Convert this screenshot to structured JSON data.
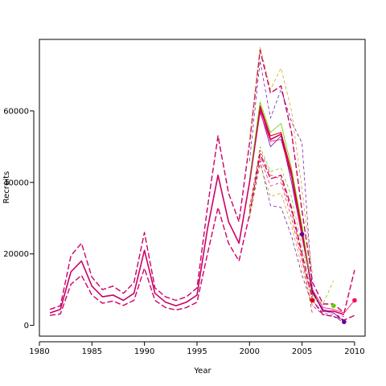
{
  "chart_data": {
    "type": "line",
    "title": "",
    "xlabel": "Year",
    "ylabel": "Recruits",
    "xlim": [
      1980,
      2011
    ],
    "ylim": [
      -3000,
      80000
    ],
    "x_ticks": [
      1980,
      1985,
      1990,
      1995,
      2000,
      2005,
      2010
    ],
    "y_ticks": [
      0,
      20000,
      40000,
      60000
    ],
    "grid": false,
    "legend": "none",
    "series": [
      {
        "color": "#cc0066",
        "style": "solid",
        "width": 1.6,
        "x": [
          1981,
          1982,
          1983,
          1984,
          1985,
          1986,
          1987,
          1988,
          1989,
          1990,
          1991,
          1992,
          1993,
          1994,
          1995,
          1996,
          1997,
          1998,
          1999,
          2000,
          2001,
          2002,
          2003,
          2004,
          2005,
          2006,
          2007,
          2008,
          2009
        ],
        "values": [
          3500,
          4500,
          15000,
          18000,
          11000,
          8000,
          8500,
          7000,
          9000,
          21000,
          9000,
          6500,
          5500,
          6500,
          8500,
          27000,
          42000,
          29000,
          23000,
          40000,
          61000,
          52000,
          53500,
          42000,
          26000,
          9500,
          4000,
          4000,
          3000
        ]
      },
      {
        "color": "#cc0066",
        "style": "dash",
        "width": 1.4,
        "x": [
          1981,
          1982,
          1983,
          1984,
          1985,
          1986,
          1987,
          1988,
          1989,
          1990,
          1991,
          1992,
          1993,
          1994,
          1995,
          1996,
          1997,
          1998,
          1999,
          2000,
          2001,
          2002,
          2003,
          2004,
          2005,
          2006,
          2007,
          2008,
          2009,
          2010
        ],
        "values": [
          4500,
          5500,
          19500,
          23000,
          13500,
          10000,
          11000,
          9000,
          12000,
          26000,
          10500,
          8000,
          7000,
          8000,
          10500,
          33000,
          53000,
          37000,
          29000,
          51000,
          77000,
          65000,
          67000,
          54000,
          32000,
          12000,
          6000,
          6000,
          3500,
          15500
        ]
      },
      {
        "color": "#cc0066",
        "style": "dash",
        "width": 1.4,
        "x": [
          1981,
          1982,
          1983,
          1984,
          1985,
          1986,
          1987,
          1988,
          1989,
          1990,
          1991,
          1992,
          1993,
          1994,
          1995,
          1996,
          1997,
          1998,
          1999,
          2000,
          2001,
          2002,
          2003,
          2004,
          2005,
          2006,
          2007,
          2008,
          2009,
          2010
        ],
        "values": [
          2800,
          3200,
          11500,
          14000,
          8500,
          6200,
          6800,
          5600,
          7000,
          16000,
          7000,
          5000,
          4300,
          5000,
          6500,
          20000,
          33000,
          23000,
          18000,
          31000,
          48000,
          41000,
          42000,
          33000,
          20000,
          7000,
          3000,
          2500,
          1500,
          2800
        ]
      },
      {
        "color": "#dd0000",
        "style": "solid",
        "width": 1.0,
        "x": [
          2000,
          2001,
          2002,
          2003,
          2004,
          2005,
          2006
        ],
        "values": [
          40000,
          61500,
          53000,
          54000,
          43000,
          27000,
          8000
        ]
      },
      {
        "color": "#66cc00",
        "style": "solid",
        "width": 0.8,
        "x": [
          2000,
          2001,
          2002,
          2003,
          2004,
          2005,
          2006
        ],
        "values": [
          41000,
          62500,
          54000,
          56500,
          44000,
          28000,
          9000
        ]
      },
      {
        "color": "#660099",
        "style": "solid",
        "width": 0.8,
        "x": [
          2000,
          2001,
          2002,
          2003,
          2004,
          2005,
          2006,
          2007,
          2008,
          2009
        ],
        "values": [
          40000,
          60000,
          50000,
          53000,
          40000,
          25000,
          9000,
          4500,
          3500,
          1000
        ]
      },
      {
        "color": "#ff0066",
        "style": "solid",
        "width": 0.8,
        "x": [
          2000,
          2001,
          2002,
          2003,
          2004,
          2005,
          2006,
          2007,
          2008,
          2009,
          2010
        ],
        "values": [
          39500,
          59500,
          51500,
          52000,
          41500,
          24500,
          10000,
          5000,
          4500,
          3500,
          7000
        ]
      },
      {
        "color": "#cc9900",
        "style": "dash",
        "width": 0.7,
        "x": [
          2000,
          2001,
          2002,
          2003,
          2004,
          2005,
          2006
        ],
        "values": [
          52000,
          78000,
          66000,
          72000,
          60000,
          38000,
          14000
        ]
      },
      {
        "color": "#660099",
        "style": "dash",
        "width": 0.7,
        "x": [
          2000,
          2001,
          2002,
          2003,
          2004,
          2005,
          2006,
          2007,
          2008,
          2009
        ],
        "values": [
          46000,
          74000,
          58000,
          66000,
          57000,
          51000,
          9000,
          4000,
          3500,
          1500
        ]
      },
      {
        "color": "#66cc00",
        "style": "dash",
        "width": 0.7,
        "x": [
          2000,
          2001,
          2002,
          2003,
          2004,
          2005,
          2006,
          2007,
          2008
        ],
        "values": [
          31000,
          50000,
          43000,
          44000,
          36000,
          22000,
          8000,
          6000,
          12500
        ]
      },
      {
        "color": "#660099",
        "style": "dash",
        "width": 0.7,
        "x": [
          2000,
          2001,
          2002,
          2003,
          2004,
          2005,
          2006,
          2007,
          2008,
          2009
        ],
        "values": [
          30000,
          46000,
          33500,
          33000,
          25000,
          14000,
          5500,
          3000,
          2500,
          800
        ]
      },
      {
        "color": "#ff0066",
        "style": "dash",
        "width": 0.7,
        "x": [
          2000,
          2001,
          2002,
          2003,
          2004,
          2005,
          2006,
          2007,
          2008,
          2009
        ],
        "values": [
          32000,
          47000,
          39000,
          40000,
          30000,
          18000,
          7000,
          3500,
          3000,
          2500
        ]
      },
      {
        "color": "#dd0000",
        "style": "dash",
        "width": 0.7,
        "x": [
          2000,
          2001,
          2002,
          2003,
          2004,
          2005,
          2006
        ],
        "values": [
          33000,
          49000,
          42000,
          41000,
          32000,
          19000,
          3000
        ]
      },
      {
        "color": "#cc9900",
        "style": "dash",
        "width": 0.7,
        "x": [
          2000,
          2001,
          2002,
          2003,
          2004,
          2005,
          2006
        ],
        "values": [
          30000,
          45000,
          36000,
          37000,
          28000,
          16000,
          5500
        ]
      }
    ],
    "points": [
      {
        "x": 2005,
        "y": 25500,
        "color": "#660099"
      },
      {
        "x": 2006,
        "y": 7000,
        "color": "#dd0000"
      },
      {
        "x": 2008,
        "y": 5500,
        "color": "#66cc00"
      },
      {
        "x": 2009,
        "y": 1000,
        "color": "#660099"
      },
      {
        "x": 2010,
        "y": 7000,
        "color": "#ff0066"
      }
    ]
  }
}
